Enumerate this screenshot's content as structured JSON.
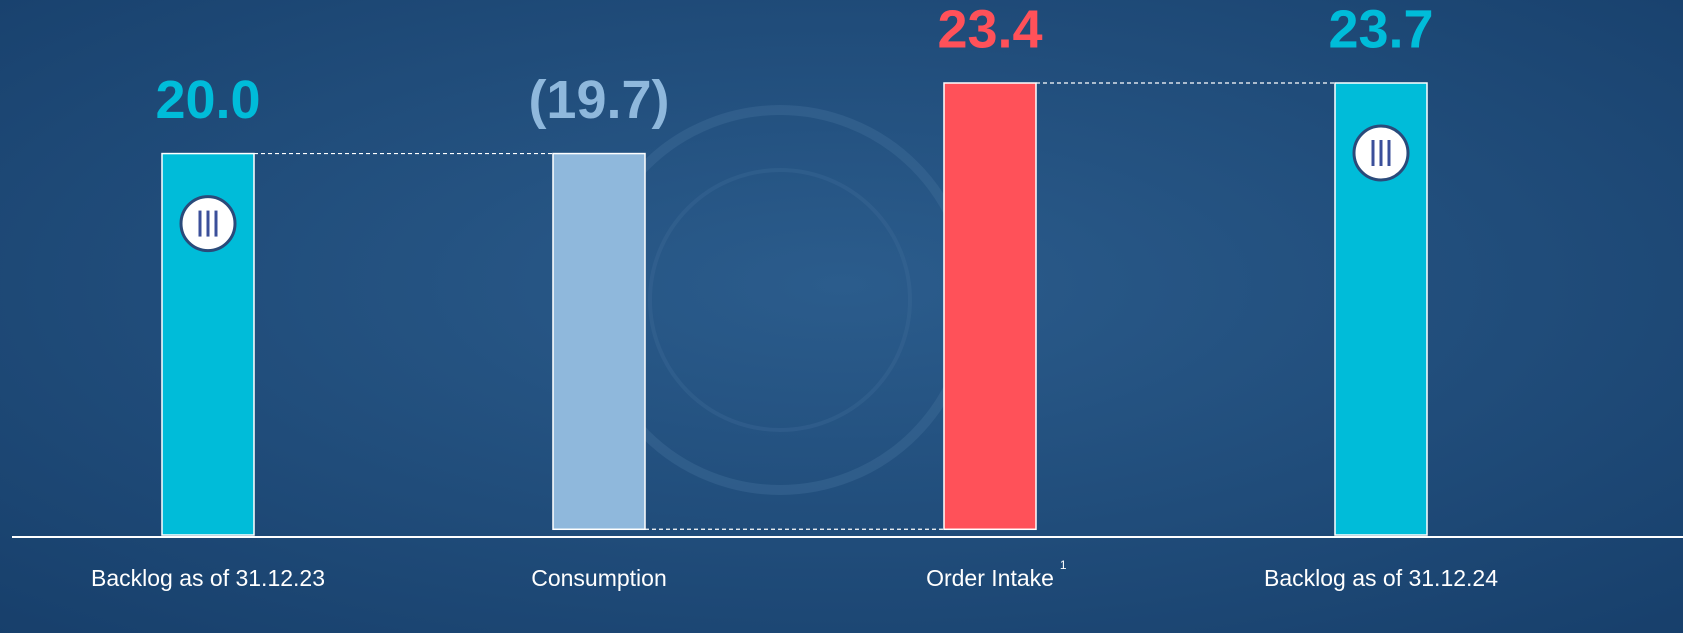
{
  "chart_data": {
    "type": "waterfall",
    "categories": [
      "Backlog as of 31.12.23",
      "Consumption",
      "Order Intake",
      "Backlog as of 31.12.24"
    ],
    "category_footnotes": [
      null,
      null,
      "1",
      null
    ],
    "measure": [
      "absolute",
      "relative",
      "relative",
      "total"
    ],
    "values": [
      20.0,
      -19.7,
      23.4,
      23.7
    ],
    "value_labels": [
      "20.0",
      "(19.7)",
      "23.4",
      "23.7"
    ],
    "colors": [
      "#00bcd9",
      "#8fb8dc",
      "#ff5159",
      "#00bcd9"
    ],
    "connectors": true
  }
}
